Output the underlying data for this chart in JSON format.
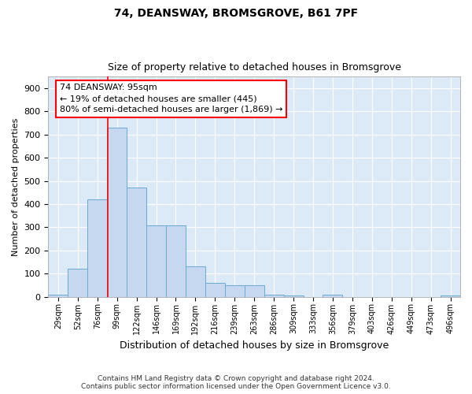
{
  "title": "74, DEANSWAY, BROMSGROVE, B61 7PF",
  "subtitle": "Size of property relative to detached houses in Bromsgrove",
  "xlabel": "Distribution of detached houses by size in Bromsgrove",
  "ylabel": "Number of detached properties",
  "footer_line1": "Contains HM Land Registry data © Crown copyright and database right 2024.",
  "footer_line2": "Contains public sector information licensed under the Open Government Licence v3.0.",
  "bin_labels": [
    "29sqm",
    "52sqm",
    "76sqm",
    "99sqm",
    "122sqm",
    "146sqm",
    "169sqm",
    "192sqm",
    "216sqm",
    "239sqm",
    "263sqm",
    "286sqm",
    "309sqm",
    "333sqm",
    "356sqm",
    "379sqm",
    "403sqm",
    "426sqm",
    "449sqm",
    "473sqm",
    "496sqm"
  ],
  "bar_values": [
    10,
    120,
    420,
    730,
    470,
    310,
    310,
    130,
    60,
    50,
    50,
    10,
    5,
    0,
    10,
    0,
    0,
    0,
    0,
    0,
    5
  ],
  "bar_color": "#c5d8f0",
  "bar_edge_color": "#6aaad4",
  "ylim": [
    0,
    950
  ],
  "yticks": [
    0,
    100,
    200,
    300,
    400,
    500,
    600,
    700,
    800,
    900
  ],
  "red_line_x": 2.54,
  "annotation_line1": "74 DEANSWAY: 95sqm",
  "annotation_line2": "← 19% of detached houses are smaller (445)",
  "annotation_line3": "80% of semi-detached houses are larger (1,869) →",
  "plot_bg_color": "#dce9f7",
  "fig_bg_color": "#ffffff",
  "grid_color": "#ffffff",
  "title_fontsize": 10,
  "subtitle_fontsize": 9,
  "ylabel_fontsize": 8,
  "xlabel_fontsize": 9,
  "tick_fontsize": 7,
  "annotation_fontsize": 8
}
